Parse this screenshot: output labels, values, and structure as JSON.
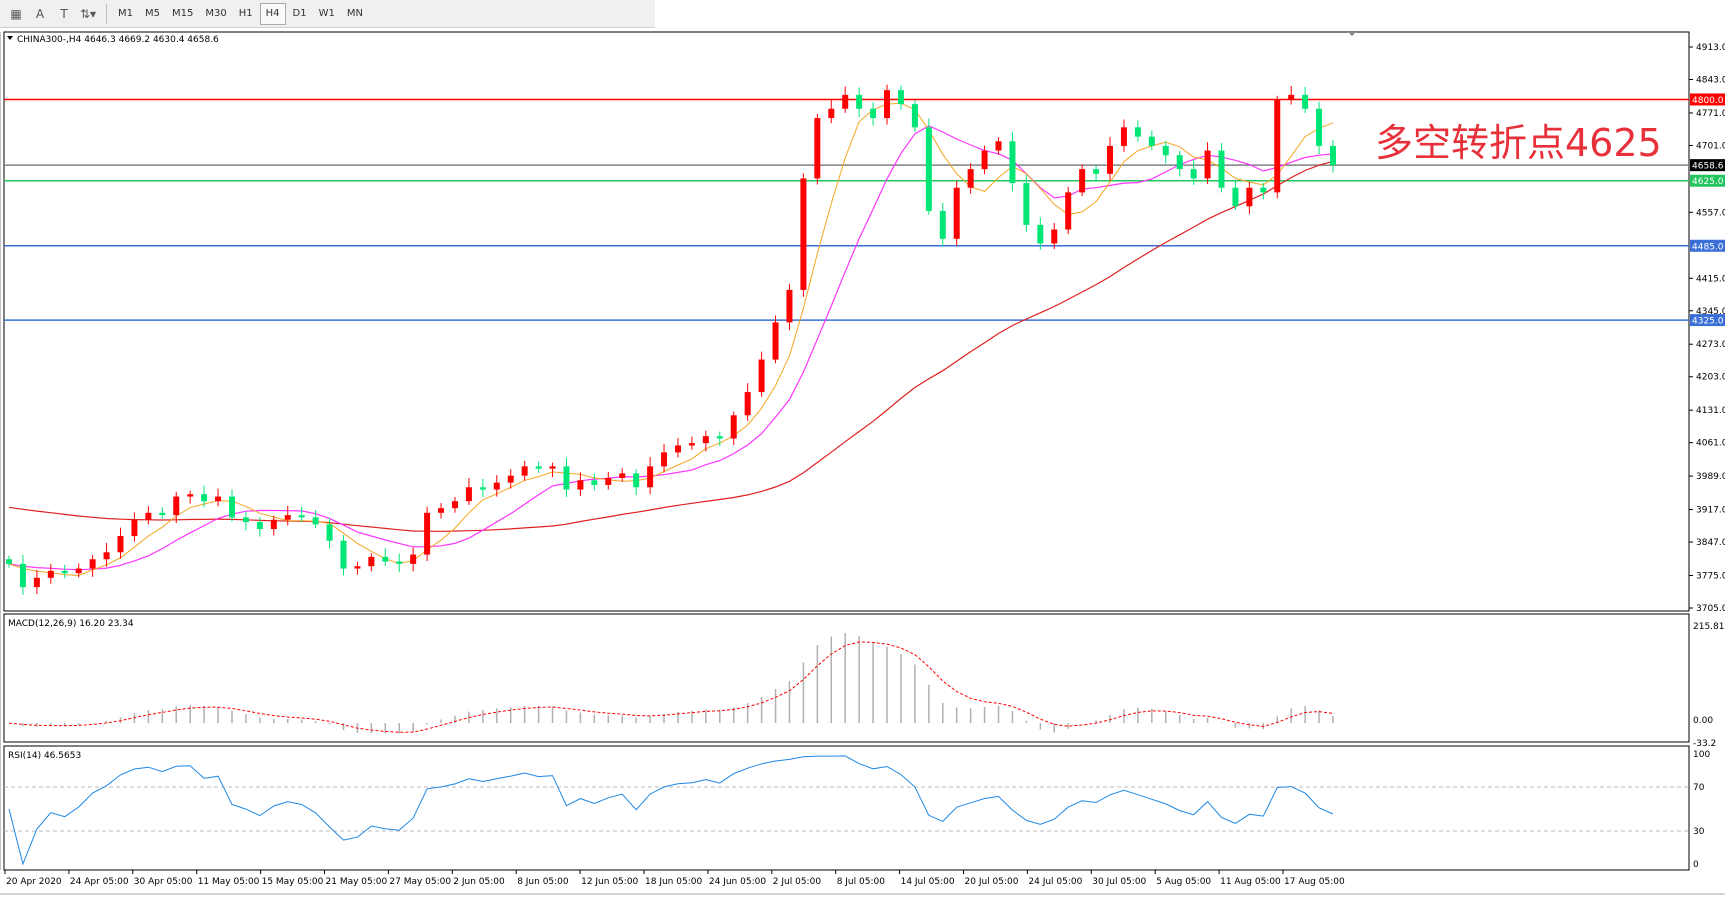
{
  "toolbar": {
    "icons": [
      "grid-icon",
      "text-A-icon",
      "text-box-icon",
      "arrows-icon"
    ],
    "timeframes": [
      "M1",
      "M5",
      "M15",
      "M30",
      "H1",
      "H4",
      "D1",
      "W1",
      "MN"
    ],
    "selected": "H4"
  },
  "header": {
    "title": "CHINA300-,H4  4646.3 4669.2 4630.4 4658.6"
  },
  "annotation": "多空转折点4625",
  "colors": {
    "bull": "#ff0000",
    "bear": "#00e676",
    "ma_fast": "#f5a623",
    "ma_mid": "#ff33ff",
    "ma_slow": "#e02020",
    "macd_hist": "#b0b0b0",
    "macd_signal": "#ff0000",
    "rsi": "#1e88e5"
  },
  "chart_data": {
    "type": "candlestick",
    "symbol": "CHINA300-",
    "timeframe": "H4",
    "ylim": [
      3705,
      4913
    ],
    "price_ticks": [
      "4913.0",
      "4843.0",
      "4771.0",
      "4701.0",
      "4557.0",
      "4415.0",
      "4345.0",
      "4273.0",
      "4203.0",
      "4131.0",
      "4061.0",
      "3989.0",
      "3917.0",
      "3847.0",
      "3775.0",
      "3705.0"
    ],
    "levels": [
      {
        "value": "4800.0",
        "color": "#ff0000"
      },
      {
        "value": "4658.6",
        "color": "#000000",
        "line": "#808080"
      },
      {
        "value": "4625.0",
        "color": "#22c55e"
      },
      {
        "value": "4485.0",
        "color": "#3b6fd8"
      },
      {
        "value": "4325.0",
        "color": "#3b6fd8"
      }
    ],
    "close": [
      3800,
      3750,
      3770,
      3785,
      3780,
      3790,
      3810,
      3825,
      3860,
      3895,
      3910,
      3905,
      3945,
      3950,
      3935,
      3945,
      3900,
      3890,
      3875,
      3895,
      3905,
      3900,
      3885,
      3850,
      3790,
      3795,
      3815,
      3805,
      3800,
      3820,
      3910,
      3920,
      3935,
      3965,
      3960,
      3975,
      3990,
      4010,
      4005,
      4010,
      3960,
      3980,
      3970,
      3985,
      3995,
      3965,
      4010,
      4040,
      4055,
      4060,
      4075,
      4070,
      4120,
      4170,
      4240,
      4320,
      4390,
      4630,
      4760,
      4780,
      4810,
      4780,
      4760,
      4820,
      4790,
      4740,
      4560,
      4500,
      4610,
      4650,
      4690,
      4710,
      4620,
      4530,
      4490,
      4520,
      4600,
      4650,
      4640,
      4700,
      4740,
      4720,
      4700,
      4680,
      4650,
      4630,
      4690,
      4610,
      4570,
      4610,
      4600,
      4800,
      4810,
      4780,
      4700,
      4658.6
    ],
    "time_labels": [
      "20 Apr 2020",
      "24 Apr 05:00",
      "30 Apr 05:00",
      "11 May 05:00",
      "15 May 05:00",
      "21 May 05:00",
      "27 May 05:00",
      "2 Jun 05:00",
      "8 Jun 05:00",
      "12 Jun 05:00",
      "18 Jun 05:00",
      "24 Jun 05:00",
      "2 Jul 05:00",
      "8 Jul 05:00",
      "14 Jul 05:00",
      "20 Jul 05:00",
      "24 Jul 05:00",
      "30 Jul 05:00",
      "5 Aug 05:00",
      "11 Aug 05:00",
      "17 Aug 05:00"
    ],
    "macd": {
      "label": "MACD(12,26,9) 16.20 23.34",
      "ylim": [
        -33.2,
        215.81
      ],
      "ticks": [
        "215.81",
        "0.00",
        "-33.2"
      ]
    },
    "rsi": {
      "label": "RSI(14) 46.5653",
      "ylim": [
        0,
        100
      ],
      "ticks": [
        "100",
        "70",
        "30",
        "0"
      ],
      "levels": [
        70,
        30
      ]
    }
  }
}
